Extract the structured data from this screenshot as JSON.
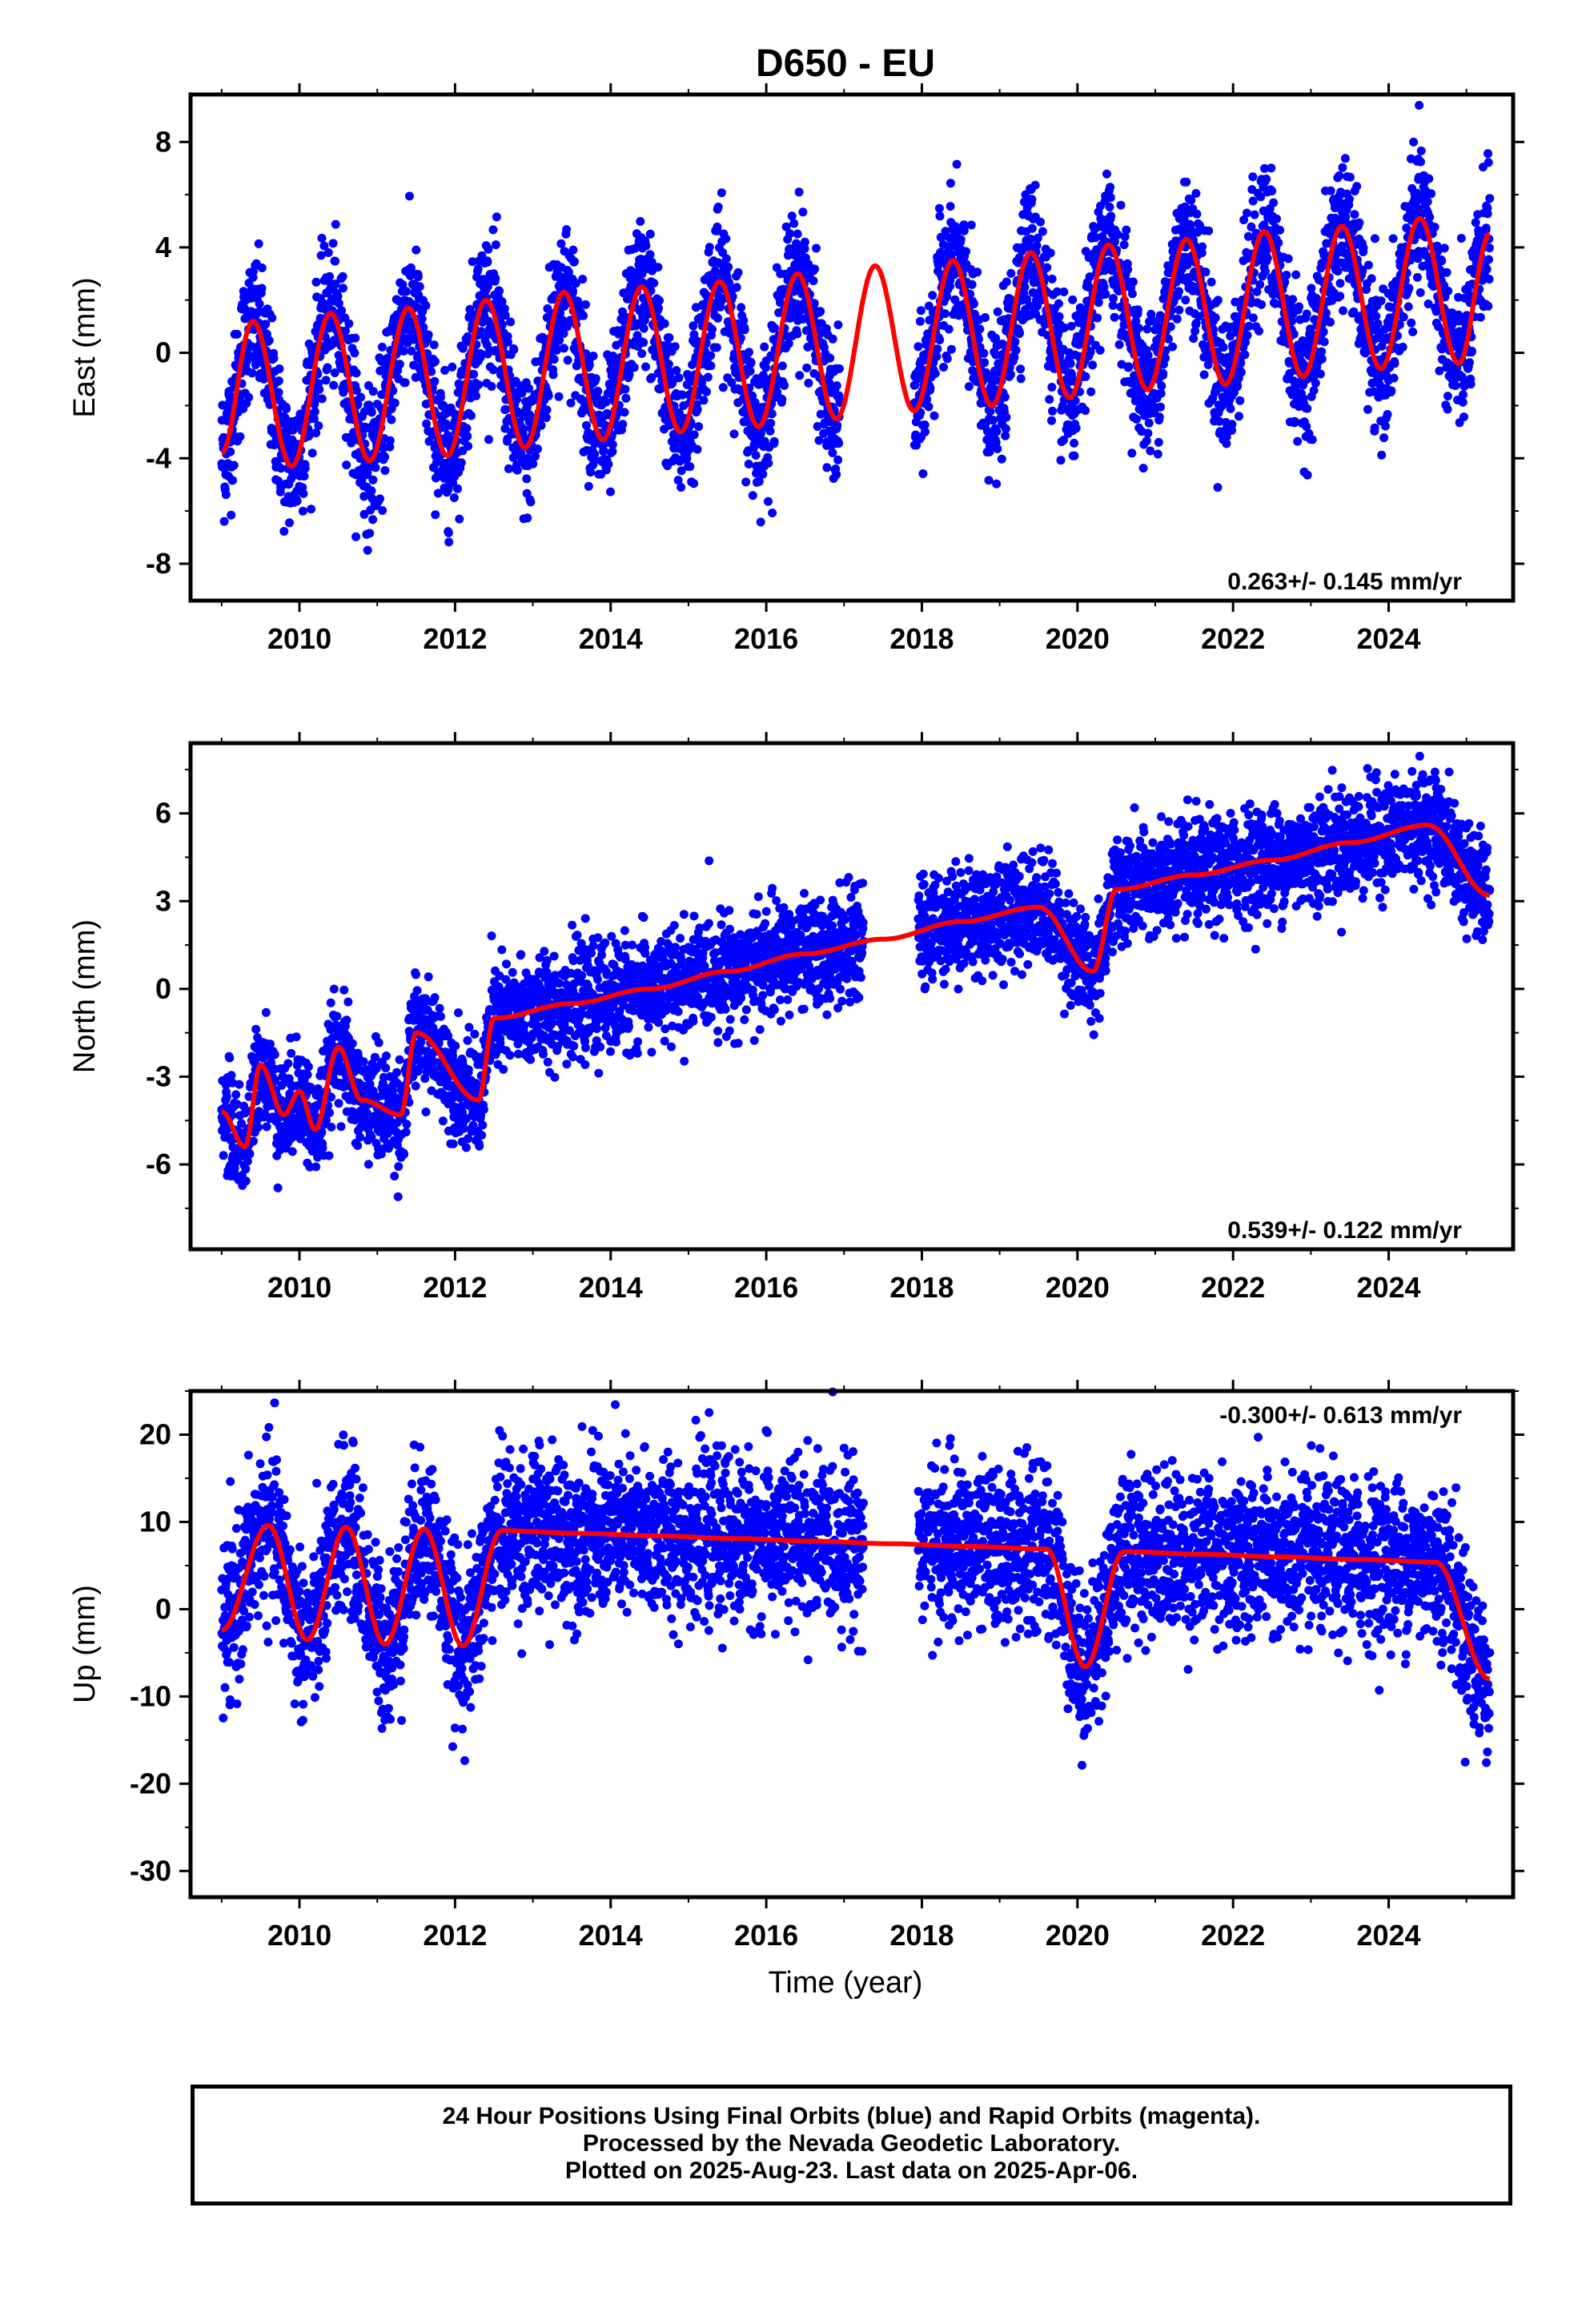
{
  "title": "D650 - EU",
  "footer": {
    "lines": [
      "24 Hour Positions Using Final Orbits (blue) and Rapid Orbits (magenta).",
      "Processed by the Nevada Geodetic Laboratory.",
      "Plotted on 2025-Aug-23. Last data on 2025-Apr-06."
    ]
  },
  "colors": {
    "points": "#0000ff",
    "fit": "#ff0000",
    "axes": "#000000"
  },
  "chart_data": [
    {
      "type": "scatter",
      "component": "east",
      "ylabel": "East (mm)",
      "xlabel": "",
      "xlim": [
        2008.6,
        2025.6
      ],
      "ylim": [
        -9.4,
        9.8
      ],
      "x_ticks": [
        2010,
        2012,
        2014,
        2016,
        2018,
        2020,
        2022,
        2024
      ],
      "y_ticks": [
        -8,
        -4,
        0,
        4,
        8
      ],
      "rate_label": "0.263+/- 0.145 mm/yr",
      "rate_label_position": "bottom-right",
      "data_gap": [
        2016.95,
        2017.9
      ],
      "fit_curve": {
        "start_value": -3.8,
        "end_value": 4.5,
        "trend": 0.263,
        "annual_amplitude": 2.9,
        "semiannual_amplitude": 0.15
      },
      "scatter_noise": 1.3,
      "samples": [
        {
          "x": 2009.0,
          "y": -3.8
        },
        {
          "x": 2009.4,
          "y": 1.2
        },
        {
          "x": 2009.9,
          "y": -4.3
        },
        {
          "x": 2010.4,
          "y": 1.5
        },
        {
          "x": 2010.9,
          "y": -4.1
        },
        {
          "x": 2011.4,
          "y": 1.7
        },
        {
          "x": 2011.9,
          "y": -3.9
        },
        {
          "x": 2012.4,
          "y": 2.0
        },
        {
          "x": 2012.9,
          "y": -3.6
        },
        {
          "x": 2013.4,
          "y": 2.3
        },
        {
          "x": 2013.9,
          "y": -3.3
        },
        {
          "x": 2014.4,
          "y": 2.5
        },
        {
          "x": 2014.9,
          "y": -3.0
        },
        {
          "x": 2015.4,
          "y": 2.7
        },
        {
          "x": 2015.9,
          "y": -2.8
        },
        {
          "x": 2016.4,
          "y": 3.0
        },
        {
          "x": 2016.9,
          "y": -2.5
        },
        {
          "x": 2017.4,
          "y": 3.3
        },
        {
          "x": 2017.9,
          "y": -2.2
        },
        {
          "x": 2018.4,
          "y": 3.5
        },
        {
          "x": 2018.9,
          "y": -2.0
        },
        {
          "x": 2019.4,
          "y": 3.8
        },
        {
          "x": 2019.9,
          "y": -1.7
        },
        {
          "x": 2020.4,
          "y": 4.1
        },
        {
          "x": 2020.9,
          "y": -1.4
        },
        {
          "x": 2021.4,
          "y": 4.3
        },
        {
          "x": 2021.9,
          "y": -1.2
        },
        {
          "x": 2022.4,
          "y": 4.6
        },
        {
          "x": 2022.9,
          "y": -0.9
        },
        {
          "x": 2023.4,
          "y": 4.8
        },
        {
          "x": 2023.9,
          "y": -0.6
        },
        {
          "x": 2024.4,
          "y": 5.1
        },
        {
          "x": 2024.9,
          "y": -0.4
        },
        {
          "x": 2025.3,
          "y": 4.5
        }
      ]
    },
    {
      "type": "scatter",
      "component": "north",
      "ylabel": "North (mm)",
      "xlabel": "",
      "xlim": [
        2008.6,
        2025.6
      ],
      "ylim": [
        -8.9,
        8.4
      ],
      "x_ticks": [
        2010,
        2012,
        2014,
        2016,
        2018,
        2020,
        2022,
        2024
      ],
      "y_ticks": [
        -6,
        -3,
        0,
        3,
        6
      ],
      "rate_label": "0.539+/- 0.122 mm/yr",
      "rate_label_position": "bottom-right",
      "data_gap": [
        2017.25,
        2017.95
      ],
      "fit_curve": {
        "start_value": -4.2,
        "end_value": 3.2,
        "trend": 0.539,
        "annual_amplitude": 0.6,
        "semiannual_amplitude": 0.9
      },
      "scatter_noise": 0.9,
      "samples": [
        {
          "x": 2009.0,
          "y": -4.2
        },
        {
          "x": 2009.3,
          "y": -5.4
        },
        {
          "x": 2009.5,
          "y": -2.6
        },
        {
          "x": 2009.8,
          "y": -4.3
        },
        {
          "x": 2010.0,
          "y": -3.5
        },
        {
          "x": 2010.2,
          "y": -4.8
        },
        {
          "x": 2010.5,
          "y": -2.0
        },
        {
          "x": 2010.8,
          "y": -3.8
        },
        {
          "x": 2011.3,
          "y": -4.3
        },
        {
          "x": 2011.5,
          "y": -1.5
        },
        {
          "x": 2012.3,
          "y": -3.8
        },
        {
          "x": 2012.5,
          "y": -1.0
        },
        {
          "x": 2013.5,
          "y": -0.5
        },
        {
          "x": 2014.5,
          "y": 0.0
        },
        {
          "x": 2015.5,
          "y": 0.6
        },
        {
          "x": 2016.5,
          "y": 1.2
        },
        {
          "x": 2017.5,
          "y": 1.7
        },
        {
          "x": 2018.5,
          "y": 2.3
        },
        {
          "x": 2019.5,
          "y": 2.8
        },
        {
          "x": 2020.2,
          "y": 0.6
        },
        {
          "x": 2020.5,
          "y": 3.4
        },
        {
          "x": 2021.5,
          "y": 3.9
        },
        {
          "x": 2022.5,
          "y": 4.4
        },
        {
          "x": 2023.5,
          "y": 5.0
        },
        {
          "x": 2024.5,
          "y": 5.6
        },
        {
          "x": 2025.3,
          "y": 3.2
        }
      ]
    },
    {
      "type": "scatter",
      "component": "up",
      "ylabel": "Up (mm)",
      "xlabel": "Time (year)",
      "xlim": [
        2008.6,
        2025.6
      ],
      "ylim": [
        -33,
        25
      ],
      "x_ticks": [
        2010,
        2012,
        2014,
        2016,
        2018,
        2020,
        2022,
        2024
      ],
      "y_ticks": [
        -30,
        -20,
        -10,
        0,
        10,
        20
      ],
      "rate_label": "-0.300+/- 0.613 mm/yr",
      "rate_label_position": "top-right",
      "data_gap": [
        2017.25,
        2017.95
      ],
      "fit_curve": {
        "start_value": -2.4,
        "end_value": -8.0,
        "trend": -0.3,
        "annual_amplitude": 6.8,
        "semiannual_amplitude": 0.5
      },
      "scatter_noise": 4.5,
      "samples": [
        {
          "x": 2009.0,
          "y": -2.4
        },
        {
          "x": 2009.6,
          "y": 9.6
        },
        {
          "x": 2010.1,
          "y": -3.5
        },
        {
          "x": 2010.6,
          "y": 9.4
        },
        {
          "x": 2011.1,
          "y": -4.0
        },
        {
          "x": 2011.6,
          "y": 9.2
        },
        {
          "x": 2012.1,
          "y": -4.2
        },
        {
          "x": 2012.6,
          "y": 9.0
        },
        {
          "x": 2013.6,
          "y": 8.7
        },
        {
          "x": 2014.6,
          "y": 8.4
        },
        {
          "x": 2015.6,
          "y": 8.1
        },
        {
          "x": 2016.6,
          "y": 7.8
        },
        {
          "x": 2017.6,
          "y": 7.5
        },
        {
          "x": 2018.6,
          "y": 7.2
        },
        {
          "x": 2019.6,
          "y": 6.9
        },
        {
          "x": 2020.1,
          "y": -6.6
        },
        {
          "x": 2020.6,
          "y": 6.6
        },
        {
          "x": 2021.6,
          "y": 6.3
        },
        {
          "x": 2022.6,
          "y": 6.0
        },
        {
          "x": 2023.6,
          "y": 5.7
        },
        {
          "x": 2024.6,
          "y": 5.4
        },
        {
          "x": 2025.3,
          "y": -8.0
        }
      ]
    }
  ]
}
